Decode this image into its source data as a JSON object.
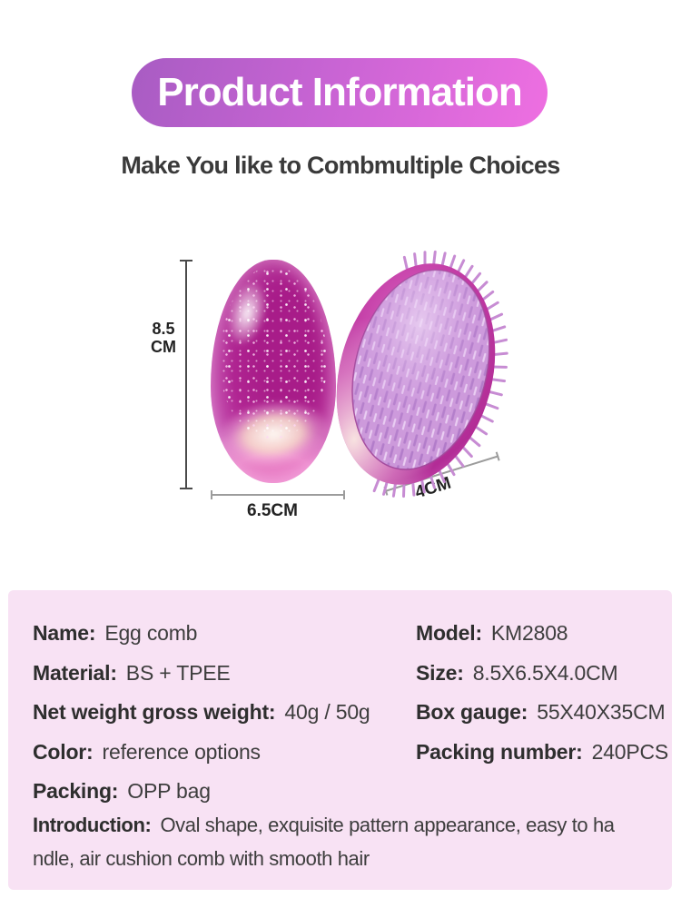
{
  "banner": {
    "title": "Product Information"
  },
  "subtitle": "Make You like to Combmultiple Choices",
  "figure": {
    "height_value": "8.5",
    "height_unit": "CM",
    "width_label": "6.5CM",
    "depth_label": "4CM"
  },
  "specs": {
    "left_column": [
      {
        "label": "Name:",
        "value": "Egg comb"
      },
      {
        "label": "Material:",
        "value": "BS + TPEE"
      },
      {
        "label": "Net weight gross weight:",
        "value": "40g / 50g"
      },
      {
        "label": "Color:",
        "value": "reference options"
      },
      {
        "label": "Packing:",
        "value": "OPP bag"
      }
    ],
    "right_column": [
      {
        "label": "Model:",
        "value": "KM2808"
      },
      {
        "label": "Size:",
        "value": "8.5X6.5X4.0CM"
      },
      {
        "label": "Box gauge:",
        "value": "55X40X35CM"
      },
      {
        "label": "Packing number:",
        "value": "240PCS"
      }
    ],
    "introduction": {
      "label": "Introduction:",
      "value": "Oval shape, exquisite pattern appearance, easy to ha\nndle, air cushion comb with smooth hair"
    }
  },
  "colors": {
    "banner-left": "#a85cc3",
    "banner-mid": "#c964d4",
    "banner-right": "#ee6fe1",
    "banner-text": "#ffffff",
    "subtitle-text": "#3a3a3a",
    "panel-bg": "#f8e2f4",
    "label-text": "#2e2e2e",
    "value-text": "#3d3d3d",
    "egg-magenta": "#b02390",
    "pad-lavender": "#c993d8",
    "dimension-line": "#9c9c9c"
  }
}
